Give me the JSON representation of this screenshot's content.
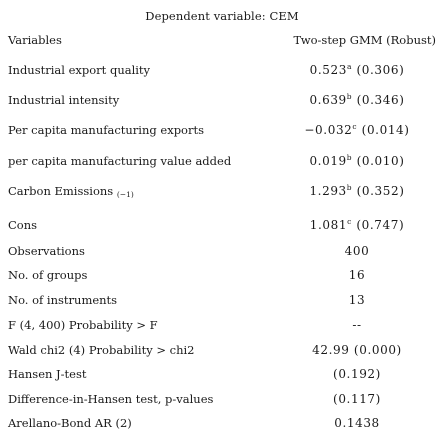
{
  "header": {
    "dependent_variable": "Dependent variable: CEM",
    "col_variables": "Variables",
    "col_model": "Two-step GMM (Robust)"
  },
  "rows": [
    {
      "label": "Industrial export quality",
      "coef": "0.523",
      "sup": "a",
      "se": "(0.306)"
    },
    {
      "label": "Industrial intensity",
      "coef": "0.639",
      "sup": "b",
      "se": "(0.346)"
    },
    {
      "label": "Per capita manufacturing exports",
      "coef": "−0.032",
      "sup": "c",
      "se": "(0.014)"
    },
    {
      "label": "per capita manufacturing value added",
      "coef": "0.019",
      "sup": "b",
      "se": "(0.010)"
    },
    {
      "label": "Carbon Emissions",
      "label_sub": "(−1)",
      "coef": "1.293",
      "sup": "b",
      "se": "(0.352)"
    },
    {
      "label": "Cons",
      "coef": "1.081",
      "sup": "c",
      "se": "(0.747)"
    }
  ],
  "stats": [
    {
      "label": "Observations",
      "value": "400"
    },
    {
      "label": "No. of groups",
      "value": "16"
    },
    {
      "label": "No. of instruments",
      "value": "13"
    },
    {
      "label": "F (4, 400) Probability > F",
      "value": "--"
    },
    {
      "label": "Wald chi2 (4) Probability > chi2",
      "value": "42.99 (0.000)"
    },
    {
      "label": "Hansen J-test",
      "value": "(0.192)"
    },
    {
      "label": "Difference-in-Hansen test, p-values",
      "value": "(0.117)"
    },
    {
      "label": "Arellano-Bond AR (2)",
      "value": "0.1438"
    }
  ]
}
